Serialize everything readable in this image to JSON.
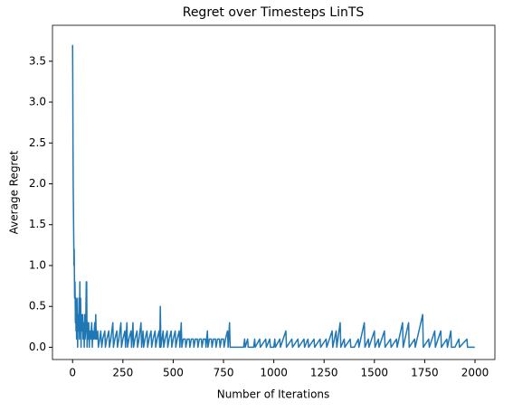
{
  "chart_data": {
    "type": "line",
    "title": "Regret over Timesteps LinTS",
    "x_label": "Number of Iterations",
    "y_label": "Average Regret",
    "x": [
      0,
      1,
      2,
      3,
      5,
      7,
      8,
      9,
      10,
      12,
      14,
      15,
      17,
      18,
      20,
      22,
      24,
      25,
      27,
      30,
      32,
      34,
      36,
      38,
      40,
      42,
      44,
      46,
      50,
      52,
      55,
      58,
      60,
      62,
      65,
      68,
      70,
      72,
      75,
      78,
      80,
      83,
      86,
      90,
      95,
      98,
      100,
      105,
      110,
      112,
      115,
      118,
      120,
      125,
      128,
      135,
      140,
      145,
      150,
      160,
      163,
      170,
      180,
      183,
      190,
      200,
      203,
      210,
      220,
      223,
      230,
      240,
      243,
      250,
      260,
      263,
      270,
      273,
      280,
      290,
      293,
      300,
      303,
      310,
      320,
      323,
      330,
      340,
      343,
      350,
      353,
      360,
      370,
      373,
      380,
      390,
      393,
      400,
      410,
      413,
      420,
      430,
      433,
      436,
      439,
      450,
      453,
      460,
      470,
      473,
      480,
      490,
      493,
      500,
      510,
      513,
      520,
      530,
      533,
      540,
      543,
      550,
      560,
      563,
      570,
      580,
      583,
      590,
      600,
      603,
      610,
      620,
      623,
      630,
      640,
      643,
      650,
      660,
      663,
      670,
      673,
      680,
      690,
      693,
      700,
      710,
      713,
      720,
      730,
      733,
      740,
      750,
      753,
      760,
      770,
      773,
      780,
      783,
      790,
      800,
      850,
      855,
      858,
      870,
      873,
      900,
      905,
      908,
      930,
      933,
      960,
      963,
      980,
      983,
      1000,
      1005,
      1008,
      1030,
      1033,
      1060,
      1063,
      1090,
      1093,
      1120,
      1123,
      1150,
      1153,
      1170,
      1173,
      1200,
      1203,
      1230,
      1233,
      1260,
      1263,
      1290,
      1293,
      1310,
      1313,
      1330,
      1333,
      1350,
      1353,
      1380,
      1383,
      1400,
      1420,
      1423,
      1450,
      1453,
      1470,
      1473,
      1500,
      1503,
      1520,
      1523,
      1550,
      1553,
      1580,
      1583,
      1610,
      1613,
      1640,
      1643,
      1670,
      1673,
      1700,
      1703,
      1740,
      1743,
      1770,
      1773,
      1800,
      1803,
      1830,
      1833,
      1860,
      1863,
      1880,
      1883,
      1900,
      1920,
      1923,
      1960,
      1963,
      1999
    ],
    "series": [
      {
        "color": "#1f77b4",
        "values": [
          3.7,
          3.2,
          2.5,
          2.0,
          1.5,
          1.0,
          1.2,
          0.9,
          0.6,
          0.8,
          0.3,
          0.6,
          0.2,
          0.4,
          0.1,
          0.6,
          0.2,
          0,
          0.4,
          0.2,
          0.6,
          0.1,
          0.8,
          0.2,
          0.6,
          0,
          0.4,
          0.2,
          0.4,
          0.1,
          0.3,
          0,
          0.4,
          0.1,
          0.2,
          0.8,
          0.8,
          0,
          0.3,
          0.1,
          0.3,
          0,
          0.2,
          0.1,
          0.3,
          0,
          0.2,
          0.1,
          0.3,
          0.1,
          0.4,
          0.1,
          0.1,
          0.2,
          0,
          0.1,
          0.2,
          0,
          0.1,
          0.2,
          0,
          0.1,
          0.2,
          0,
          0.1,
          0.3,
          0,
          0.1,
          0.2,
          0,
          0.1,
          0.3,
          0,
          0.1,
          0.2,
          0,
          0.3,
          0,
          0.1,
          0.2,
          0,
          0.3,
          0,
          0.1,
          0.2,
          0,
          0.1,
          0.3,
          0,
          0.2,
          0,
          0.1,
          0.2,
          0,
          0.1,
          0.2,
          0,
          0.1,
          0.2,
          0,
          0.1,
          0.2,
          0,
          0.5,
          0,
          0.2,
          0,
          0.1,
          0.2,
          0,
          0.1,
          0.2,
          0,
          0.1,
          0.2,
          0,
          0.1,
          0.2,
          0,
          0.3,
          0,
          0.1,
          0.1,
          0,
          0.1,
          0.1,
          0,
          0.1,
          0.1,
          0,
          0.1,
          0.1,
          0,
          0.1,
          0.1,
          0,
          0.1,
          0.1,
          0,
          0.2,
          0,
          0.1,
          0.1,
          0,
          0.1,
          0.1,
          0,
          0.1,
          0.1,
          0,
          0.1,
          0.1,
          0,
          0.1,
          0.2,
          0,
          0.3,
          0,
          0,
          0,
          0,
          0.1,
          0,
          0.1,
          0,
          0,
          0.1,
          0,
          0.1,
          0,
          0.1,
          0,
          0.1,
          0,
          0,
          0.1,
          0,
          0.1,
          0,
          0.2,
          0,
          0.1,
          0,
          0.1,
          0,
          0.1,
          0,
          0.1,
          0,
          0.1,
          0,
          0.1,
          0,
          0.1,
          0,
          0.2,
          0,
          0.2,
          0,
          0.3,
          0,
          0.1,
          0,
          0.1,
          0,
          0,
          0.1,
          0,
          0.3,
          0,
          0.1,
          0,
          0.2,
          0,
          0.1,
          0,
          0.2,
          0,
          0.1,
          0,
          0.1,
          0,
          0.3,
          0,
          0.3,
          0,
          0.1,
          0,
          0.4,
          0,
          0.1,
          0,
          0.2,
          0,
          0.2,
          0,
          0.1,
          0,
          0.2,
          0,
          0,
          0.1,
          0,
          0.1,
          0,
          0
        ]
      }
    ],
    "xlim": [
      -100,
      2099
    ],
    "ylim": [
      -0.15,
      3.94
    ],
    "xticks": [
      0,
      250,
      500,
      750,
      1000,
      1250,
      1500,
      1750,
      2000
    ],
    "yticks": [
      {
        "value": 0,
        "label": "0.0"
      },
      {
        "value": 0.5,
        "label": "0.5"
      },
      {
        "value": 1,
        "label": "1.0"
      },
      {
        "value": 1.5,
        "label": "1.5"
      },
      {
        "value": 2,
        "label": "2.0"
      },
      {
        "value": 2.5,
        "label": "2.5"
      },
      {
        "value": 3,
        "label": "3.0"
      },
      {
        "value": 3.5,
        "label": "3.5"
      }
    ],
    "grid": false
  }
}
